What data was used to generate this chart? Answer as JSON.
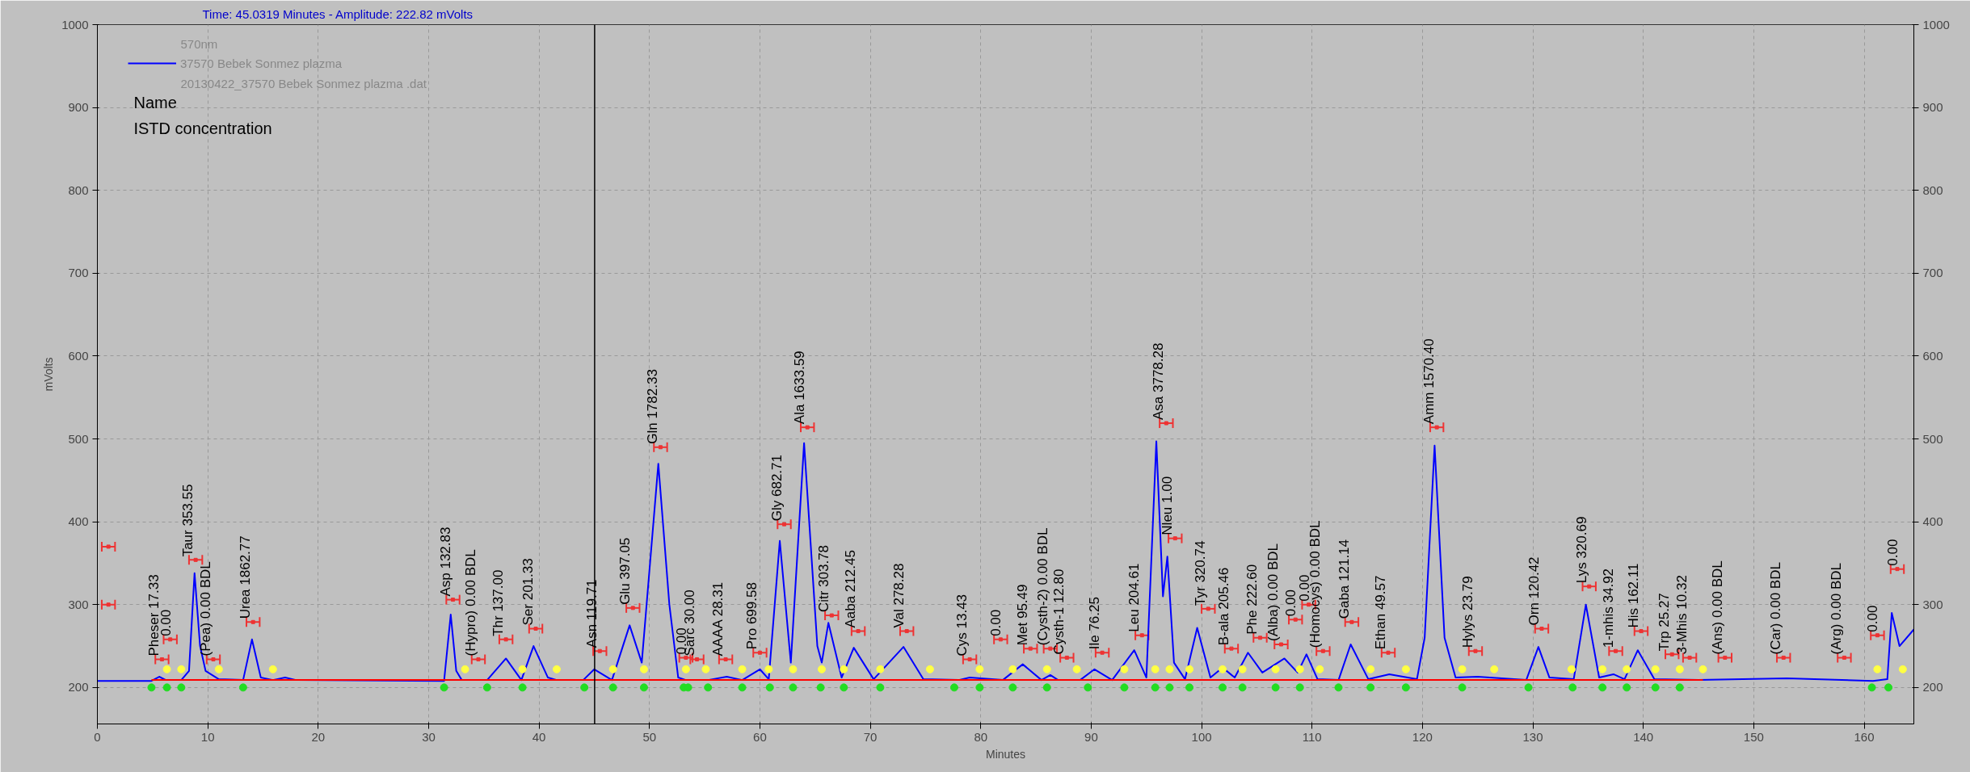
{
  "chart_data": {
    "type": "line",
    "subtitle": "Time:  45.0319 Minutes - Amplitude:  222.82 mVolts",
    "xlabel": "Minutes",
    "ylabel": "mVolts",
    "xlim": [
      0,
      164.5
    ],
    "ylim": [
      156,
      1000
    ],
    "y2lim": [
      156,
      1000
    ],
    "xticks": [
      0,
      10,
      20,
      30,
      40,
      50,
      60,
      70,
      80,
      90,
      100,
      110,
      120,
      130,
      140,
      150,
      160
    ],
    "yticks": [
      200,
      300,
      400,
      500,
      600,
      700,
      800,
      900,
      1000
    ],
    "y2ticks": [
      200,
      300,
      400,
      500,
      600,
      700,
      800,
      900,
      1000
    ],
    "grid": true,
    "legend": "top left",
    "ref_lines": [
      {
        "axis": "x",
        "value": 45.0319,
        "color": "#000000"
      }
    ],
    "series": [
      {
        "name": "37570 Bebek Sonmez plazma",
        "type": "line",
        "color": "#0000ff",
        "x": [
          0,
          4.9,
          5.6,
          6.2,
          7.6,
          8.3,
          8.8,
          9.3,
          9.8,
          11,
          13.2,
          14,
          14.8,
          15.9,
          17,
          18,
          31.4,
          32,
          32.5,
          33,
          35.3,
          37,
          38.4,
          39.5,
          40.8,
          41.6,
          44,
          45,
          46.6,
          48.2,
          49.3,
          50.8,
          51.8,
          52.6,
          53.3,
          55.3,
          57,
          58.4,
          60,
          60.8,
          61.8,
          62.8,
          64,
          65.2,
          65.6,
          66.2,
          67.4,
          68.5,
          70.3,
          73,
          74.8,
          78,
          79,
          82,
          83.8,
          85.5,
          86.3,
          87,
          89,
          90.3,
          91.9,
          93.9,
          95,
          95.9,
          96.5,
          96.9,
          97.5,
          98.5,
          99.6,
          100.8,
          101.9,
          103,
          104.2,
          105.5,
          107.5,
          108.7,
          109.5,
          110.5,
          112.4,
          113.5,
          115.1,
          117,
          119.5,
          120.2,
          121.1,
          122,
          123,
          125,
          129.4,
          130.5,
          131.5,
          133.7,
          134.8,
          136,
          137.3,
          138.3,
          139.5,
          141,
          145,
          153,
          160.8,
          162.1,
          162.5,
          163.2,
          164.5
        ],
        "values": [
          208,
          208,
          213,
          209,
          209,
          220,
          338,
          250,
          220,
          210,
          209,
          258,
          212,
          209,
          212,
          209,
          208,
          288,
          220,
          209,
          209,
          235,
          209,
          250,
          212,
          209,
          209,
          222,
          209,
          275,
          230,
          470,
          300,
          212,
          209,
          209,
          213,
          209,
          222,
          210,
          377,
          230,
          495,
          250,
          230,
          278,
          212,
          248,
          210,
          249,
          210,
          209,
          212,
          209,
          228,
          209,
          215,
          209,
          209,
          222,
          209,
          245,
          212,
          497,
          310,
          358,
          230,
          210,
          272,
          212,
          224,
          212,
          242,
          218,
          235,
          218,
          240,
          210,
          209,
          252,
          210,
          216,
          210,
          260,
          492,
          260,
          212,
          213,
          209,
          249,
          212,
          210,
          300,
          212,
          216,
          210,
          245,
          210,
          209,
          211,
          208,
          210,
          290,
          250,
          270
        ]
      },
      {
        "color": "#ff0000",
        "x": [
          4.9,
          145.4
        ],
        "values": [
          209,
          209
        ]
      },
      {
        "type": "scatter",
        "marker": "square",
        "color": "#ee3333",
        "x": [
          1,
          1,
          5.85,
          6.6,
          8.9,
          10.5,
          14.1,
          32.2,
          34.5,
          37,
          39.7,
          45.5,
          48.5,
          51,
          53.3,
          54.3,
          56.9,
          60,
          62.2,
          64.3,
          66.5,
          68.9,
          73.3,
          79,
          81.8,
          84.5,
          86.3,
          87.8,
          91,
          94.6,
          96.8,
          97.6,
          100.6,
          102.7,
          105.3,
          107.2,
          108.5,
          109.7,
          111,
          113.6,
          116.9,
          121.3,
          124.8,
          130.8,
          135.1,
          137.5,
          139.8,
          142.6,
          144.2,
          147.4,
          152.7,
          158.2,
          161.2,
          163
        ],
        "values": [
          370,
          300,
          234,
          258,
          354,
          234,
          279,
          306,
          234,
          258,
          271,
          244,
          296,
          490,
          236,
          234,
          234,
          242,
          397,
          514,
          287,
          268,
          268,
          234,
          258,
          247,
          247,
          236,
          242,
          263,
          519,
          380,
          295,
          247,
          260,
          252,
          282,
          300,
          244,
          279,
          242,
          514,
          244,
          271,
          322,
          244,
          268,
          240,
          236,
          236,
          236,
          236,
          263,
          343
        ],
        "xerrors": [
          0.6,
          0.6,
          0.6,
          0.6,
          0.6,
          0.6,
          0.6,
          0.6,
          0.6,
          0.6,
          0.6,
          0.6,
          0.6,
          0.6,
          0.6,
          0.6,
          0.6,
          0.6,
          0.6,
          0.6,
          0.6,
          0.6,
          0.6,
          0.6,
          0.6,
          0.6,
          0.6,
          0.6,
          0.6,
          0.6,
          0.6,
          0.6,
          0.6,
          0.6,
          0.6,
          0.6,
          0.6,
          0.6,
          0.6,
          0.6,
          0.6,
          0.6,
          0.6,
          0.6,
          0.6,
          0.6,
          0.6,
          0.6,
          0.6,
          0.6,
          0.6,
          0.6,
          0.6,
          0.6
        ]
      },
      {
        "type": "scatter",
        "marker": "circle",
        "color": "#22dd22",
        "x": [
          4.9,
          6.3,
          7.6,
          13.2,
          31.4,
          35.3,
          38.5,
          44.1,
          46.7,
          49.5,
          53.1,
          53.5,
          55.3,
          58.4,
          60.9,
          63.0,
          65.5,
          67.6,
          70.9,
          77.6,
          79.9,
          82.9,
          86.0,
          89.7,
          93.0,
          95.8,
          97.1,
          98.9,
          101.9,
          103.7,
          106.7,
          108.9,
          112.4,
          115.3,
          118.5,
          123.6,
          129.6,
          133.6,
          136.3,
          138.5,
          141.1,
          143.3,
          160.7,
          162.2
        ],
        "values": [
          200,
          200,
          200,
          200,
          200,
          200,
          200,
          200,
          200,
          200,
          200,
          200,
          200,
          200,
          200,
          200,
          200,
          200,
          200,
          200,
          200,
          200,
          200,
          200,
          200,
          200,
          200,
          200,
          200,
          200,
          200,
          200,
          200,
          200,
          200,
          200,
          200,
          200,
          200,
          200,
          200,
          200,
          200,
          200
        ]
      },
      {
        "type": "scatter",
        "marker": "circle",
        "color": "#ffff44",
        "x": [
          6.3,
          7.6,
          11,
          15.9,
          33.3,
          38.5,
          41.6,
          46.7,
          49.5,
          53.3,
          55.1,
          58.4,
          60.8,
          63,
          65.6,
          67.6,
          70.9,
          75.4,
          79.9,
          82.9,
          86,
          88.7,
          93,
          95.8,
          97.1,
          98.9,
          101.9,
          103.7,
          106.7,
          108.9,
          110.7,
          115.3,
          118.5,
          123.6,
          126.5,
          133.5,
          136.3,
          138.5,
          141.1,
          143.3,
          145.4,
          161.2,
          163.5
        ],
        "values": [
          222,
          222,
          222,
          222,
          222,
          222,
          222,
          222,
          222,
          222,
          222,
          222,
          222,
          222,
          222,
          222,
          222,
          222,
          222,
          222,
          222,
          222,
          222,
          222,
          222,
          222,
          222,
          222,
          222,
          222,
          222,
          222,
          222,
          222,
          222,
          222,
          222,
          222,
          222,
          222,
          222,
          222,
          222
        ]
      }
    ],
    "annotations": [
      "570nm",
      "20130422_37570 Bebek Sonmez plazma .dat",
      "Name",
      "ISTD concentration",
      {
        "text": "Pheser  17.33",
        "x": 5.85,
        "y": 234
      },
      {
        "text": "0.00",
        "x": 6.6,
        "y": 258
      },
      {
        "text": "Taur  353.55",
        "x": 8.9,
        "y": 354
      },
      {
        "text": "(Pea)  0.00 BDL",
        "x": 10.5,
        "y": 234
      },
      {
        "text": "Urea  1862.77",
        "x": 14.1,
        "y": 279
      },
      {
        "text": "Asp  132.83",
        "x": 32.2,
        "y": 306
      },
      {
        "text": "(Hypro)  0.00 BDL",
        "x": 34.5,
        "y": 234
      },
      {
        "text": "Thr  137.00",
        "x": 37,
        "y": 258
      },
      {
        "text": "Ser  201.33",
        "x": 39.7,
        "y": 271
      },
      {
        "text": "Asn  119.71",
        "x": 45.5,
        "y": 244
      },
      {
        "text": "Glu  397.05",
        "x": 48.5,
        "y": 296
      },
      {
        "text": "Gln  1782.33",
        "x": 51,
        "y": 490
      },
      {
        "text": "0.00",
        "x": 53.3,
        "y": 236
      },
      {
        "text": "Sarc  30.00",
        "x": 54.3,
        "y": 234
      },
      {
        "text": "AAAA  28.31",
        "x": 56.9,
        "y": 234
      },
      {
        "text": "Pro  699.58",
        "x": 60,
        "y": 242
      },
      {
        "text": "Gly  682.71",
        "x": 62.2,
        "y": 397
      },
      {
        "text": "Ala  1633.59",
        "x": 64.3,
        "y": 514
      },
      {
        "text": "Citr  303.78",
        "x": 66.5,
        "y": 287
      },
      {
        "text": "Aaba  212.45",
        "x": 68.9,
        "y": 268
      },
      {
        "text": "Val  278.28",
        "x": 73.3,
        "y": 268
      },
      {
        "text": "Cys  13.43",
        "x": 79,
        "y": 234
      },
      {
        "text": "0.00",
        "x": 81.8,
        "y": 258
      },
      {
        "text": "Met  95.49",
        "x": 84.5,
        "y": 247
      },
      {
        "text": "(Cysth-2)  0.00 BDL",
        "x": 86.3,
        "y": 247
      },
      {
        "text": "Cysth-1  12.80",
        "x": 87.8,
        "y": 236
      },
      {
        "text": "Ile  76.25",
        "x": 91,
        "y": 242
      },
      {
        "text": "Leu  204.61",
        "x": 94.6,
        "y": 263
      },
      {
        "text": "Asa  3778.28",
        "x": 96.8,
        "y": 519
      },
      {
        "text": "Nleu  1.00",
        "x": 97.6,
        "y": 380
      },
      {
        "text": "Tyr  320.74",
        "x": 100.6,
        "y": 295
      },
      {
        "text": "B-ala  205.46",
        "x": 102.7,
        "y": 247
      },
      {
        "text": "Phe  222.60",
        "x": 105.3,
        "y": 260
      },
      {
        "text": "(Alba)  0.00 BDL",
        "x": 107.2,
        "y": 252
      },
      {
        "text": "0.00",
        "x": 108.5,
        "y": 282
      },
      {
        "text": "0.00",
        "x": 109.7,
        "y": 300
      },
      {
        "text": "(Homocys)  0.00 BDL",
        "x": 111,
        "y": 244
      },
      {
        "text": "Gaba  121.14",
        "x": 113.6,
        "y": 279
      },
      {
        "text": "Ethan  49.57",
        "x": 116.9,
        "y": 242
      },
      {
        "text": "Amm  1570.40",
        "x": 121.3,
        "y": 514
      },
      {
        "text": "Hylys  23.79",
        "x": 124.8,
        "y": 244
      },
      {
        "text": "Orn  120.42",
        "x": 130.8,
        "y": 271
      },
      {
        "text": "Lys  320.69",
        "x": 135.1,
        "y": 322
      },
      {
        "text": "1-mhis  34.92",
        "x": 137.5,
        "y": 244
      },
      {
        "text": "His  162.11",
        "x": 139.8,
        "y": 268
      },
      {
        "text": "Trp  25.27",
        "x": 142.6,
        "y": 240
      },
      {
        "text": "3-Mhis  10.32",
        "x": 144.2,
        "y": 236
      },
      {
        "text": "(Ans)  0.00 BDL",
        "x": 147.4,
        "y": 236
      },
      {
        "text": "(Car)  0.00 BDL",
        "x": 152.7,
        "y": 236
      },
      {
        "text": "(Arg)  0.00 BDL",
        "x": 158.2,
        "y": 236
      },
      {
        "text": "0.00",
        "x": 161.2,
        "y": 263
      },
      {
        "text": "0.00",
        "x": 163,
        "y": 343
      }
    ]
  }
}
